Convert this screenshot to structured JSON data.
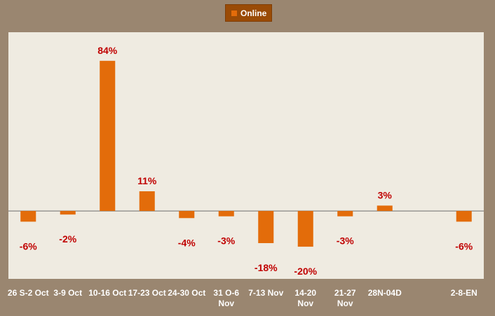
{
  "chart_data": {
    "type": "bar",
    "categories": [
      [
        "26 S-2 Oct"
      ],
      [
        "3-9 Oct"
      ],
      [
        "10-16 Oct"
      ],
      [
        "17-23 Oct"
      ],
      [
        "24-30 Oct"
      ],
      [
        "31 O-6",
        "Nov"
      ],
      [
        "7-13 Nov"
      ],
      [
        "14-20",
        "Nov"
      ],
      [
        "21-27",
        "Nov"
      ],
      [
        "28N-04D"
      ],
      [
        ""
      ],
      [
        "2-8-EN"
      ]
    ],
    "series": [
      {
        "name": "Online",
        "values": [
          -6,
          -2,
          84,
          11,
          -4,
          -3,
          -18,
          -20,
          -3,
          3,
          null,
          -6
        ],
        "labels": [
          "-6%",
          "-2%",
          "84%",
          "11%",
          "-4%",
          "-3%",
          "-18%",
          "-20%",
          "-3%",
          "3%",
          "",
          "-6%"
        ]
      }
    ],
    "ylim": [
      -38,
      100
    ],
    "grid": false,
    "legend": "top-center",
    "colors": {
      "bar": "#e36c0a",
      "data_label": "#c00000",
      "plot_background": "#efebe1",
      "frame_background": "#9a8670",
      "legend_background": "#9a4b06",
      "tick_label": "#ffffff"
    }
  },
  "legend": {
    "label": "Online"
  }
}
